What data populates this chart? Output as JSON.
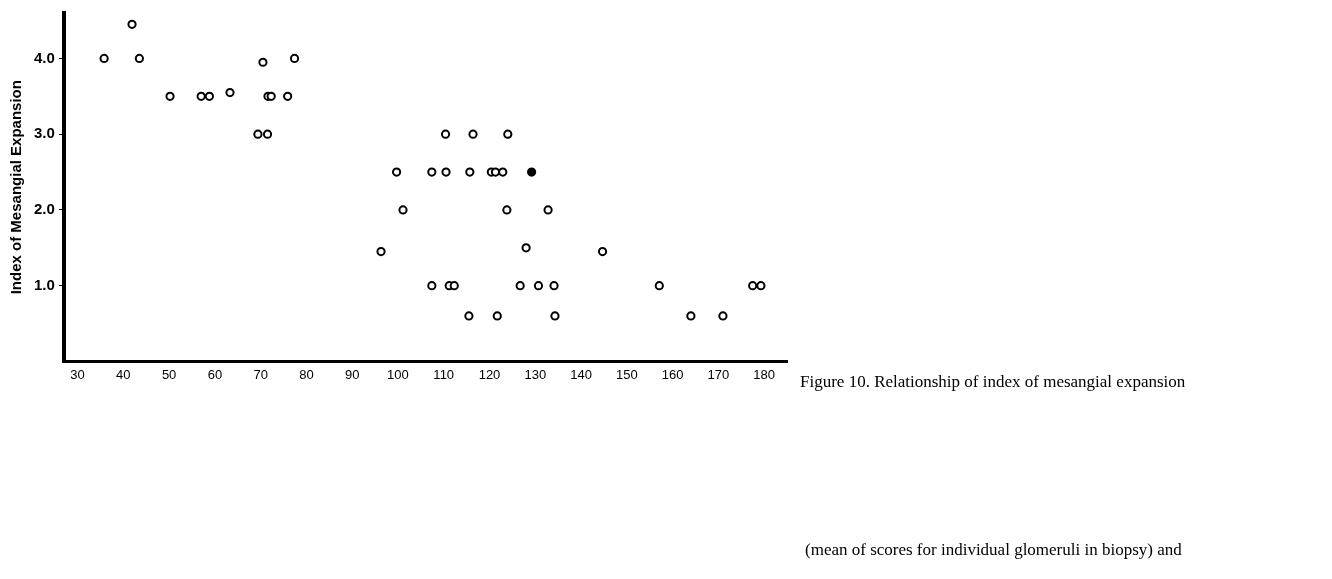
{
  "chart_data": {
    "type": "scatter",
    "ylabel": "Index of Mesangial Expansion",
    "xlim": [
      27,
      185
    ],
    "xticks": [
      30,
      40,
      50,
      60,
      70,
      80,
      90,
      100,
      110,
      120,
      130,
      140,
      150,
      160,
      170,
      180
    ],
    "ylim": [
      0,
      4.6
    ],
    "yticks": [
      {
        "value": 1,
        "label": "1.0"
      },
      {
        "value": 2,
        "label": "2.0"
      },
      {
        "value": 3,
        "label": "3.0"
      },
      {
        "value": 4,
        "label": "4.0"
      }
    ],
    "grid": false,
    "legend": false,
    "marker": "circle",
    "series": [
      {
        "color": "#000000",
        "x": [
          35.8,
          41.9,
          43.5,
          50.2,
          57.0,
          58.8,
          63.3,
          69.4,
          71.5,
          70.5,
          71.6,
          72.3,
          75.9,
          77.4,
          96.3,
          99.7,
          101.1,
          110.4,
          116.4,
          124.0,
          107.4,
          110.5,
          115.7,
          120.4,
          121.3,
          122.9,
          123.8,
          132.8,
          128.0,
          144.7,
          107.4,
          111.2,
          112.3,
          126.7,
          130.7,
          134.1,
          157.1,
          177.5,
          179.3,
          115.5,
          121.7,
          134.3,
          164.0,
          171.0
        ],
        "values": [
          4.0,
          4.45,
          4.0,
          3.5,
          3.5,
          3.5,
          3.55,
          3.0,
          3.0,
          3.95,
          3.5,
          3.5,
          3.5,
          4.0,
          1.45,
          2.5,
          2.0,
          3.0,
          3.0,
          3.0,
          2.5,
          2.5,
          2.5,
          2.5,
          2.5,
          2.5,
          2.0,
          2.0,
          1.5,
          1.45,
          1.0,
          1.0,
          1.0,
          1.0,
          1.0,
          1.0,
          1.0,
          1.0,
          1.0,
          0.6,
          0.6,
          0.6,
          0.6,
          0.6
        ]
      },
      {
        "color": "#000000",
        "x": [
          129.2
        ],
        "values": [
          2.5
        ]
      }
    ],
    "annotations": [
      "Figure 10. Relationship of index of mesangial expansion",
      "(mean of scores for individual glomeruli in biopsy) and"
    ]
  }
}
